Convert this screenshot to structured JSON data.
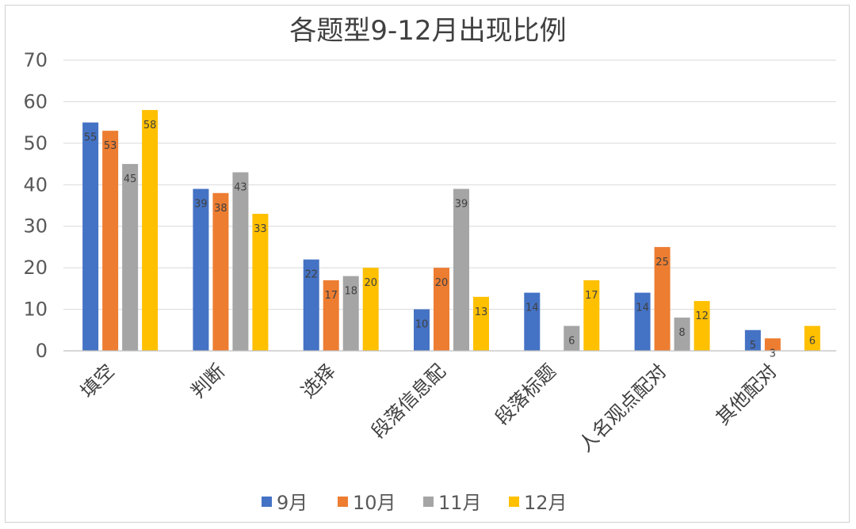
{
  "chart_data": {
    "type": "bar",
    "title": "各题型9-12月出现比例",
    "categories": [
      "填空",
      "判断",
      "选择",
      "段落信息配",
      "段落标题",
      "人名观点配对",
      "其他配对"
    ],
    "series": [
      {
        "name": "9月",
        "color": "#4472C4",
        "values": [
          55,
          39,
          22,
          10,
          14,
          14,
          5
        ]
      },
      {
        "name": "10月",
        "color": "#ED7D31",
        "values": [
          53,
          38,
          17,
          20,
          null,
          25,
          3
        ]
      },
      {
        "name": "11月",
        "color": "#A5A5A5",
        "values": [
          45,
          43,
          18,
          39,
          6,
          8,
          null
        ]
      },
      {
        "name": "12月",
        "color": "#FFC000",
        "values": [
          58,
          33,
          20,
          13,
          17,
          12,
          6
        ]
      }
    ],
    "yticks": [
      "0",
      "10",
      "20",
      "30",
      "40",
      "50",
      "60",
      "70"
    ],
    "ylim": [
      0,
      70
    ],
    "grid": true,
    "legend_position": "bottom",
    "data_labels": "inside-end"
  }
}
